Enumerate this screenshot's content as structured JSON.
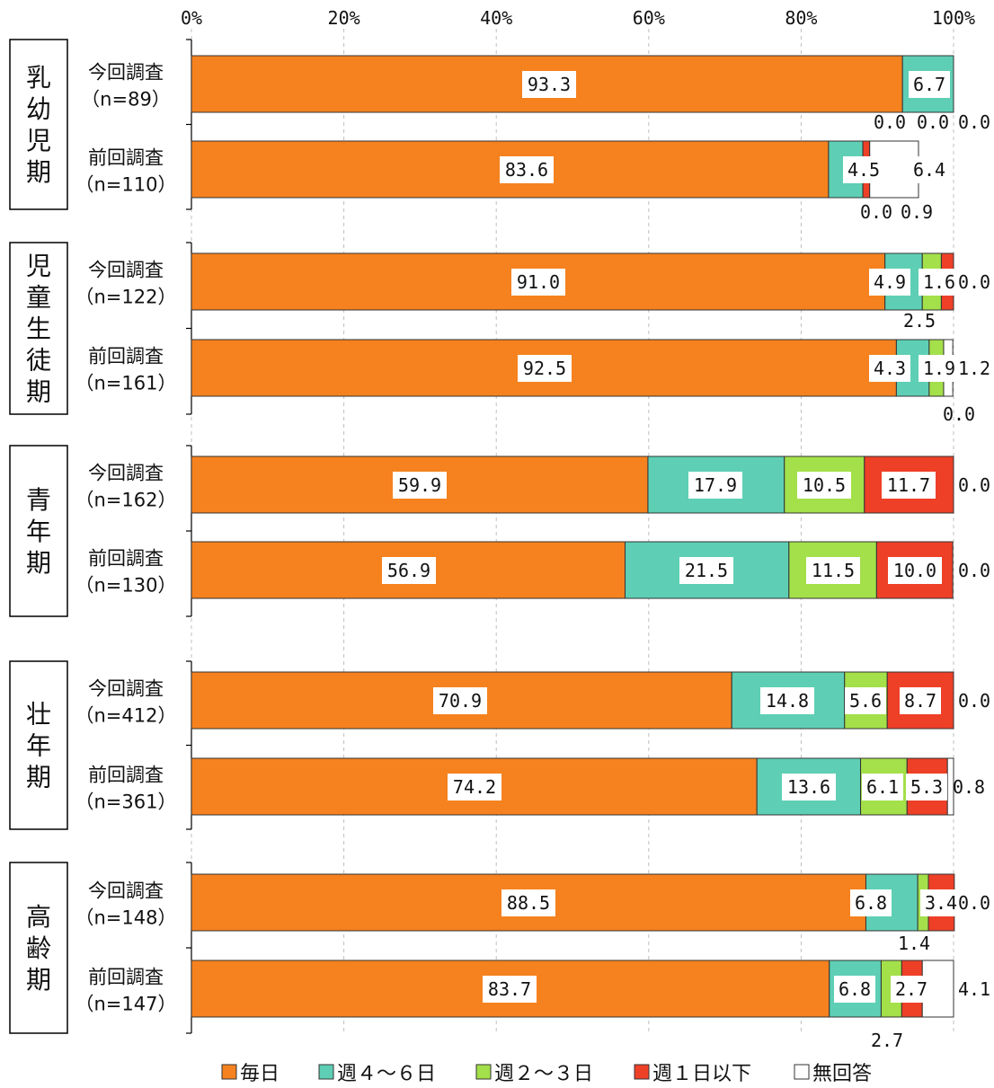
{
  "chart_data": {
    "type": "bar",
    "orientation": "horizontal",
    "stacked": true,
    "percent_axis": [
      "0%",
      "20%",
      "40%",
      "60%",
      "80%",
      "100%"
    ],
    "xlim": [
      0,
      100
    ],
    "grid": true,
    "legend_position": "bottom",
    "series": [
      {
        "name": "毎日",
        "color": "#f5821f"
      },
      {
        "name": "週４～６日",
        "color": "#5ecfb4"
      },
      {
        "name": "週２～３日",
        "color": "#a3e04a"
      },
      {
        "name": "週１日以下",
        "color": "#ee4027"
      },
      {
        "name": "無回答",
        "color": "#ffffff"
      }
    ],
    "groups": [
      {
        "label": "乳幼児期",
        "rows": [
          {
            "survey": "今回調査",
            "n": "（n=89）",
            "values": [
              93.3,
              6.7,
              0.0,
              0.0,
              0.0
            ],
            "labels": [
              "93.3",
              "6.7",
              "0.0",
              "0.0",
              "0.0"
            ]
          },
          {
            "survey": "前回調査",
            "n": "（n=110）",
            "values": [
              83.6,
              4.5,
              0.0,
              0.9,
              6.4
            ],
            "labels": [
              "83.6",
              "4.5",
              "0.0",
              "0.9",
              "6.4"
            ]
          }
        ]
      },
      {
        "label": "児童生徒期",
        "rows": [
          {
            "survey": "今回調査",
            "n": "（n=122）",
            "values": [
              91.0,
              4.9,
              2.5,
              1.6,
              0.0
            ],
            "labels": [
              "91.0",
              "4.9",
              "2.5",
              "1.6",
              "0.0"
            ]
          },
          {
            "survey": "前回調査",
            "n": "（n=161）",
            "values": [
              92.5,
              4.3,
              1.9,
              0.0,
              1.2
            ],
            "labels": [
              "92.5",
              "4.3",
              "1.9",
              "0.0",
              "1.2"
            ]
          }
        ]
      },
      {
        "label": "青年期",
        "rows": [
          {
            "survey": "今回調査",
            "n": "（n=162）",
            "values": [
              59.9,
              17.9,
              10.5,
              11.7,
              0.0
            ],
            "labels": [
              "59.9",
              "17.9",
              "10.5",
              "11.7",
              "0.0"
            ]
          },
          {
            "survey": "前回調査",
            "n": "（n=130）",
            "values": [
              56.9,
              21.5,
              11.5,
              10.0,
              0.0
            ],
            "labels": [
              "56.9",
              "21.5",
              "11.5",
              "10.0",
              "0.0"
            ]
          }
        ]
      },
      {
        "label": "壮年期",
        "rows": [
          {
            "survey": "今回調査",
            "n": "（n=412）",
            "values": [
              70.9,
              14.8,
              5.6,
              8.7,
              0.0
            ],
            "labels": [
              "70.9",
              "14.8",
              "5.6",
              "8.7",
              "0.0"
            ]
          },
          {
            "survey": "前回調査",
            "n": "（n=361）",
            "values": [
              74.2,
              13.6,
              6.1,
              5.3,
              0.8
            ],
            "labels": [
              "74.2",
              "13.6",
              "6.1",
              "5.3",
              "0.8"
            ]
          }
        ]
      },
      {
        "label": "高齢期",
        "rows": [
          {
            "survey": "今回調査",
            "n": "（n=148）",
            "values": [
              88.5,
              6.8,
              1.4,
              3.4,
              0.0
            ],
            "labels": [
              "88.5",
              "6.8",
              "1.4",
              "3.4",
              "0.0"
            ]
          },
          {
            "survey": "前回調査",
            "n": "（n=147）",
            "values": [
              83.7,
              6.8,
              2.7,
              2.7,
              4.1
            ],
            "labels": [
              "83.7",
              "6.8",
              "2.7",
              "2.7",
              "4.1"
            ]
          }
        ]
      }
    ]
  }
}
